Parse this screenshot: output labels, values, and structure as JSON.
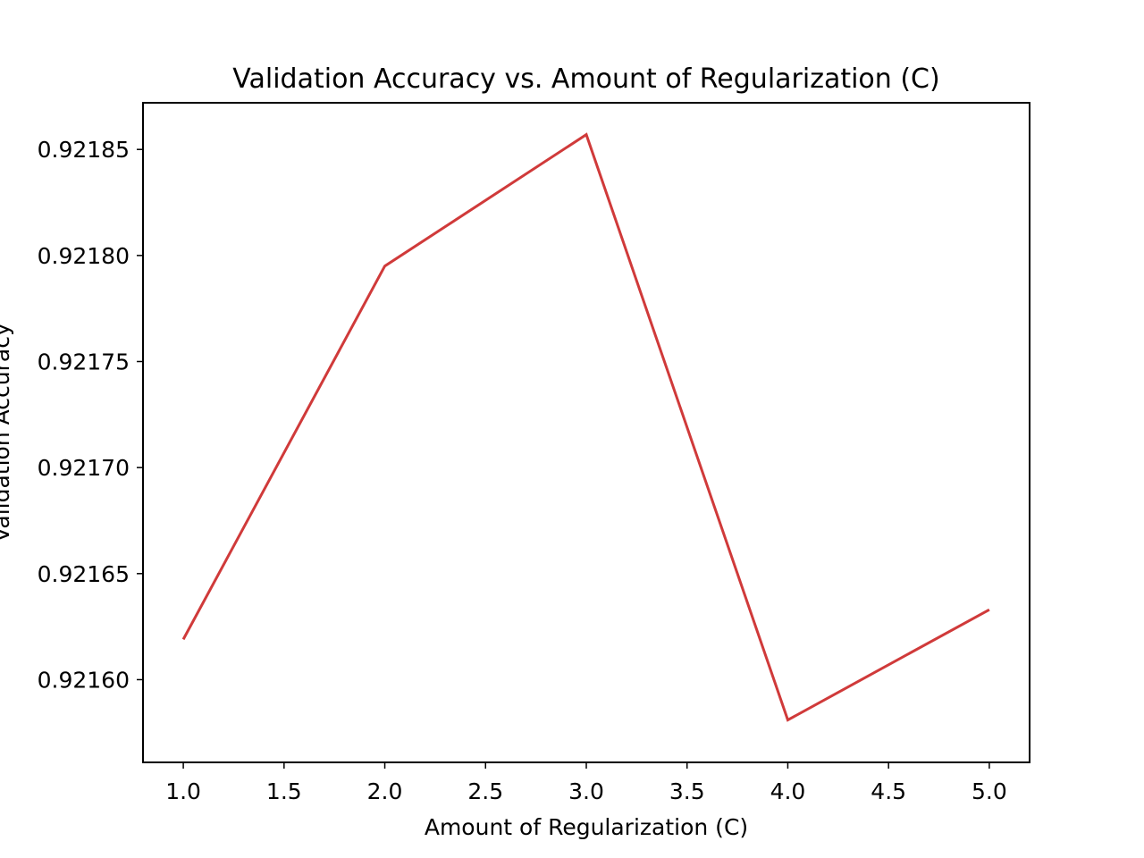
{
  "chart_data": {
    "type": "line",
    "title": "Validation Accuracy vs. Amount of Regularization (C)",
    "xlabel": "Amount of Regularization (C)",
    "ylabel": "Validation Accuracy",
    "xlim": [
      0.8,
      5.2
    ],
    "ylim": [
      0.921561,
      0.921872
    ],
    "x_ticks": [
      1.0,
      1.5,
      2.0,
      2.5,
      3.0,
      3.5,
      4.0,
      4.5,
      5.0
    ],
    "x_tick_labels": [
      "1.0",
      "1.5",
      "2.0",
      "2.5",
      "3.0",
      "3.5",
      "4.0",
      "4.5",
      "5.0"
    ],
    "y_ticks": [
      0.9216,
      0.92165,
      0.9217,
      0.92175,
      0.9218,
      0.92185
    ],
    "y_tick_labels": [
      "0.92160",
      "0.92165",
      "0.92170",
      "0.92175",
      "0.92180",
      "0.92185"
    ],
    "grid": false,
    "series": [
      {
        "x": [
          1.0,
          2.0,
          3.0,
          4.0,
          5.0
        ],
        "y": [
          0.921619,
          0.921795,
          0.921857,
          0.921581,
          0.921633
        ],
        "color": "#d03a3a"
      }
    ]
  }
}
